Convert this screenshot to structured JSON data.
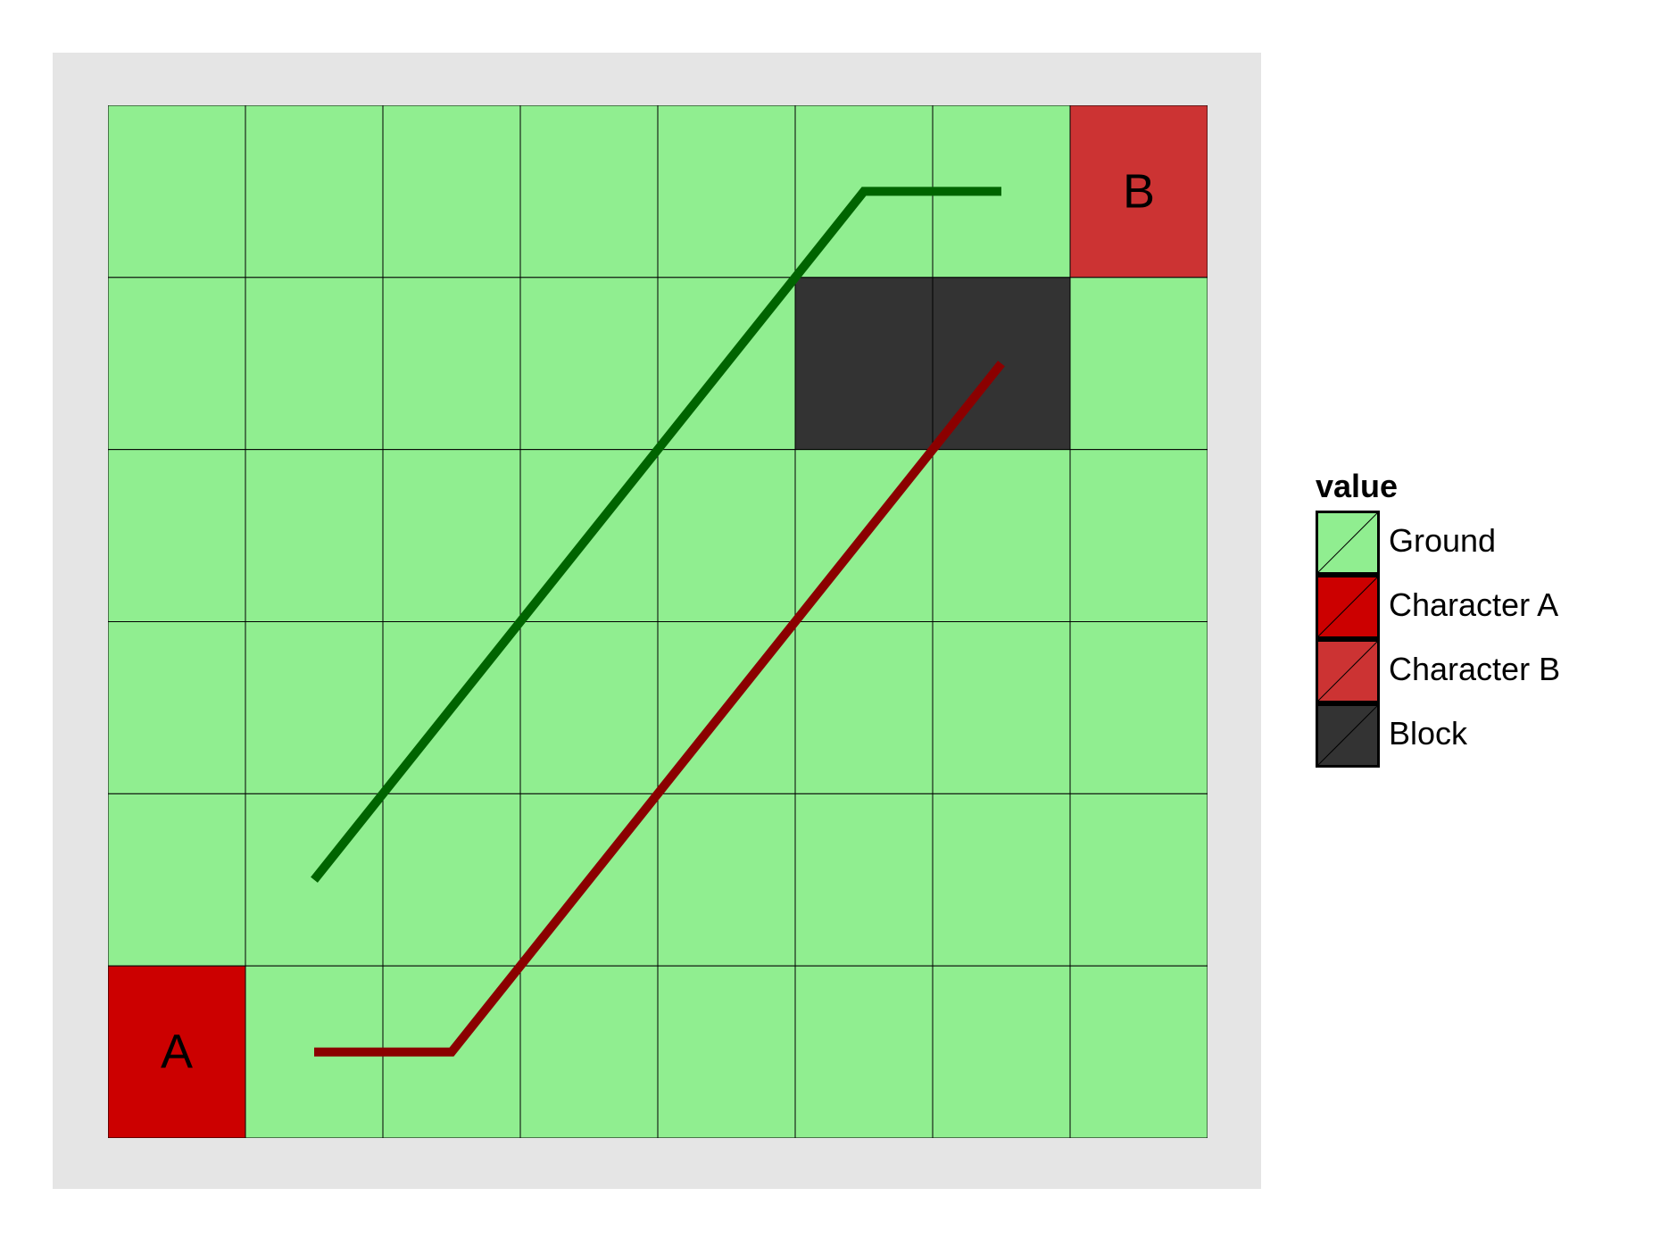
{
  "grid": {
    "columns": 8,
    "rows": 6,
    "cells": [
      [
        "Ground",
        "Ground",
        "Ground",
        "Ground",
        "Ground",
        "Ground",
        "Ground",
        "Character B"
      ],
      [
        "Ground",
        "Ground",
        "Ground",
        "Ground",
        "Ground",
        "Block",
        "Block",
        "Ground"
      ],
      [
        "Ground",
        "Ground",
        "Ground",
        "Ground",
        "Ground",
        "Ground",
        "Ground",
        "Ground"
      ],
      [
        "Ground",
        "Ground",
        "Ground",
        "Ground",
        "Ground",
        "Ground",
        "Ground",
        "Ground"
      ],
      [
        "Ground",
        "Ground",
        "Ground",
        "Ground",
        "Ground",
        "Ground",
        "Ground",
        "Ground"
      ],
      [
        "Character A",
        "Ground",
        "Ground",
        "Ground",
        "Ground",
        "Ground",
        "Ground",
        "Ground"
      ]
    ],
    "cell_labels": [
      {
        "row": 0,
        "col": 7,
        "text": "B"
      },
      {
        "row": 5,
        "col": 0,
        "text": "A"
      }
    ]
  },
  "paths": [
    {
      "color": "#006400",
      "points": [
        [
          1.5,
          4.5
        ],
        [
          5.5,
          0.5
        ],
        [
          6.5,
          0.5
        ]
      ]
    },
    {
      "color": "#8b0000",
      "points": [
        [
          1.5,
          5.5
        ],
        [
          2.5,
          5.5
        ],
        [
          6.5,
          1.5
        ]
      ]
    }
  ],
  "colors": {
    "Ground": "#90ee90",
    "Character A": "#cc0000",
    "Character B": "#cc3333",
    "Block": "#333333",
    "grid_line": "#000000",
    "panel_background": "#e5e5e5"
  },
  "legend": {
    "title": "value",
    "items": [
      {
        "label": "Ground",
        "color": "#90ee90"
      },
      {
        "label": "Character A",
        "color": "#cc0000"
      },
      {
        "label": "Character B",
        "color": "#cc3333"
      },
      {
        "label": "Block",
        "color": "#333333"
      }
    ]
  }
}
